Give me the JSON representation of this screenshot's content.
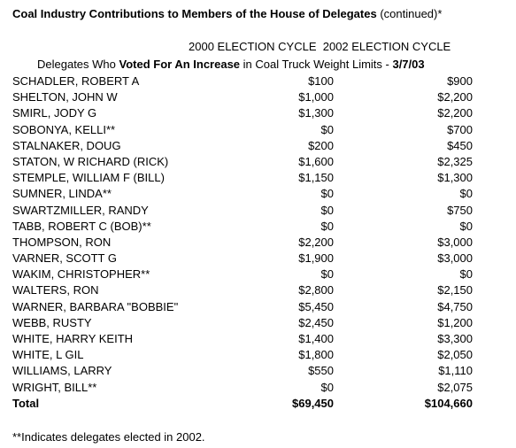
{
  "title": {
    "bold": "Coal Industry Contributions to Members of the House of Delegates",
    "rest": " (continued)*"
  },
  "column_headers": "2000 ELECTION CYCLE  2002 ELECTION CYCLE",
  "subtitle": {
    "pre": "Delegates Who ",
    "bold": "Voted For An Increase",
    "mid": " in Coal Truck Weight Limits - ",
    "date": "3/7/03"
  },
  "rows": [
    {
      "name": "SCHADLER, ROBERT A",
      "v2000": "$100",
      "v2002": "$900"
    },
    {
      "name": "SHELTON, JOHN W",
      "v2000": "$1,000",
      "v2002": "$2,200"
    },
    {
      "name": "SMIRL, JODY G",
      "v2000": "$1,300",
      "v2002": "$2,200"
    },
    {
      "name": "SOBONYA, KELLI**",
      "v2000": "$0",
      "v2002": "$700"
    },
    {
      "name": "STALNAKER, DOUG",
      "v2000": "$200",
      "v2002": "$450"
    },
    {
      "name": "STATON, W RICHARD (RICK)",
      "v2000": "$1,600",
      "v2002": "$2,325"
    },
    {
      "name": "STEMPLE, WILLIAM F (BILL)",
      "v2000": "$1,150",
      "v2002": "$1,300"
    },
    {
      "name": "SUMNER, LINDA**",
      "v2000": "$0",
      "v2002": "$0"
    },
    {
      "name": "SWARTZMILLER, RANDY",
      "v2000": "$0",
      "v2002": "$750"
    },
    {
      "name": "TABB, ROBERT C (BOB)**",
      "v2000": "$0",
      "v2002": "$0"
    },
    {
      "name": "THOMPSON, RON",
      "v2000": "$2,200",
      "v2002": "$3,000"
    },
    {
      "name": "VARNER, SCOTT G",
      "v2000": "$1,900",
      "v2002": "$3,000"
    },
    {
      "name": "WAKIM, CHRISTOPHER**",
      "v2000": "$0",
      "v2002": "$0"
    },
    {
      "name": "WALTERS, RON",
      "v2000": "$2,800",
      "v2002": "$2,150"
    },
    {
      "name": "WARNER, BARBARA \"BOBBIE\"",
      "v2000": "$5,450",
      "v2002": "$4,750"
    },
    {
      "name": "WEBB, RUSTY",
      "v2000": "$2,450",
      "v2002": "$1,200"
    },
    {
      "name": "WHITE, HARRY KEITH",
      "v2000": "$1,400",
      "v2002": "$3,300"
    },
    {
      "name": "WHITE, L GIL",
      "v2000": "$1,800",
      "v2002": "$2,050"
    },
    {
      "name": "WILLIAMS, LARRY",
      "v2000": "$550",
      "v2002": "$1,110"
    },
    {
      "name": "WRIGHT, BILL**",
      "v2000": "$0",
      "v2002": "$2,075"
    }
  ],
  "total": {
    "name": "Total",
    "v2000": "$69,450",
    "v2002": "$104,660"
  },
  "footnote": "**Indicates delegates elected in 2002."
}
